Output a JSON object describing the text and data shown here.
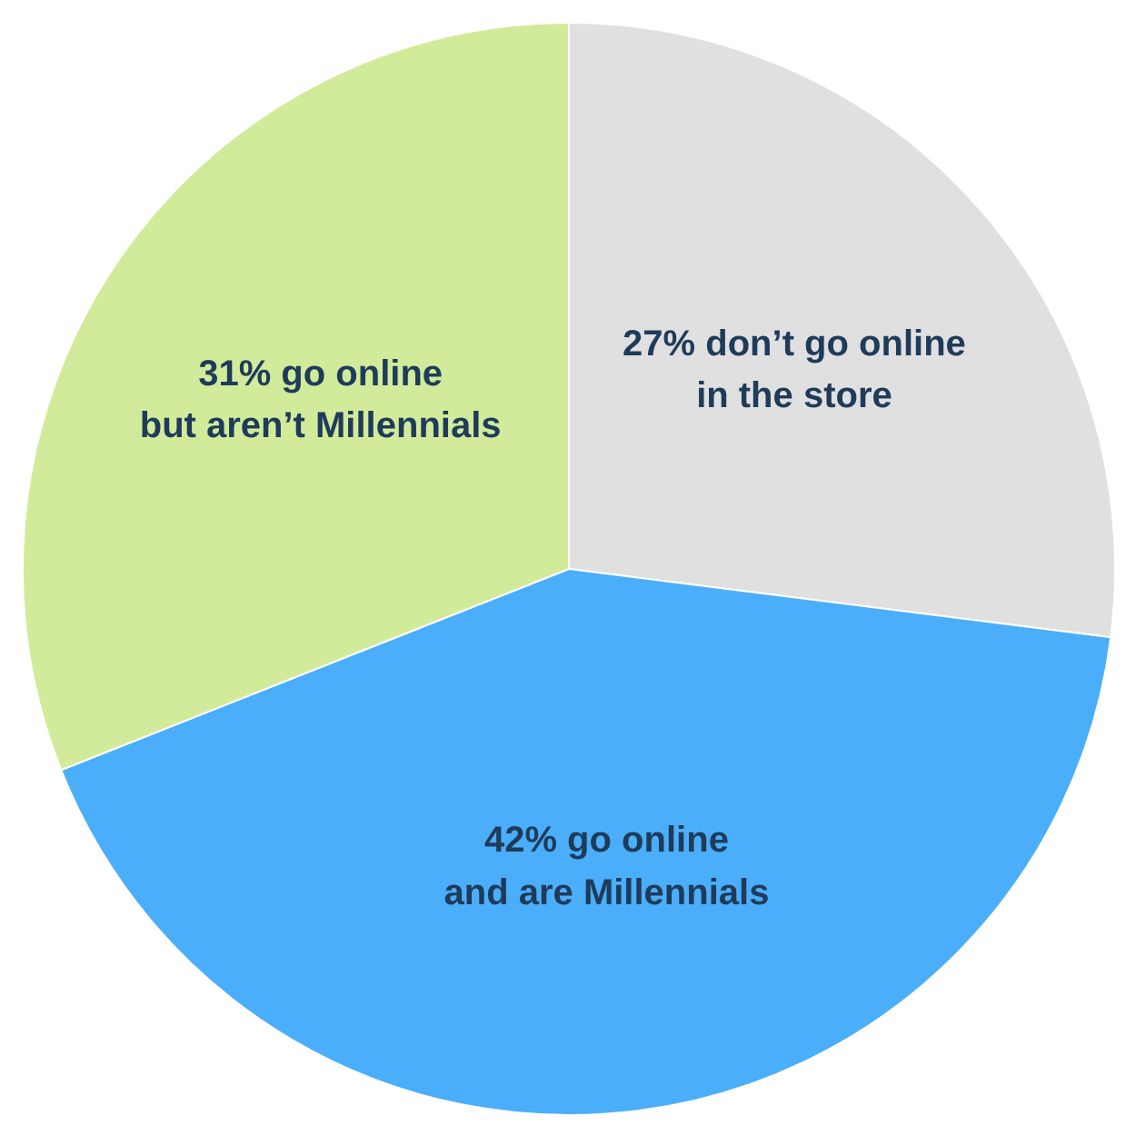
{
  "chart_data": {
    "type": "pie",
    "categories": [
      "27% don’t go online\nin the store",
      "42% go online\nand are Millennials",
      "31% go online\nbut aren’t Millennials"
    ],
    "values": [
      27,
      42,
      31
    ],
    "colors": [
      "#e0e0e0",
      "#4aaefa",
      "#d2eb9a"
    ]
  }
}
